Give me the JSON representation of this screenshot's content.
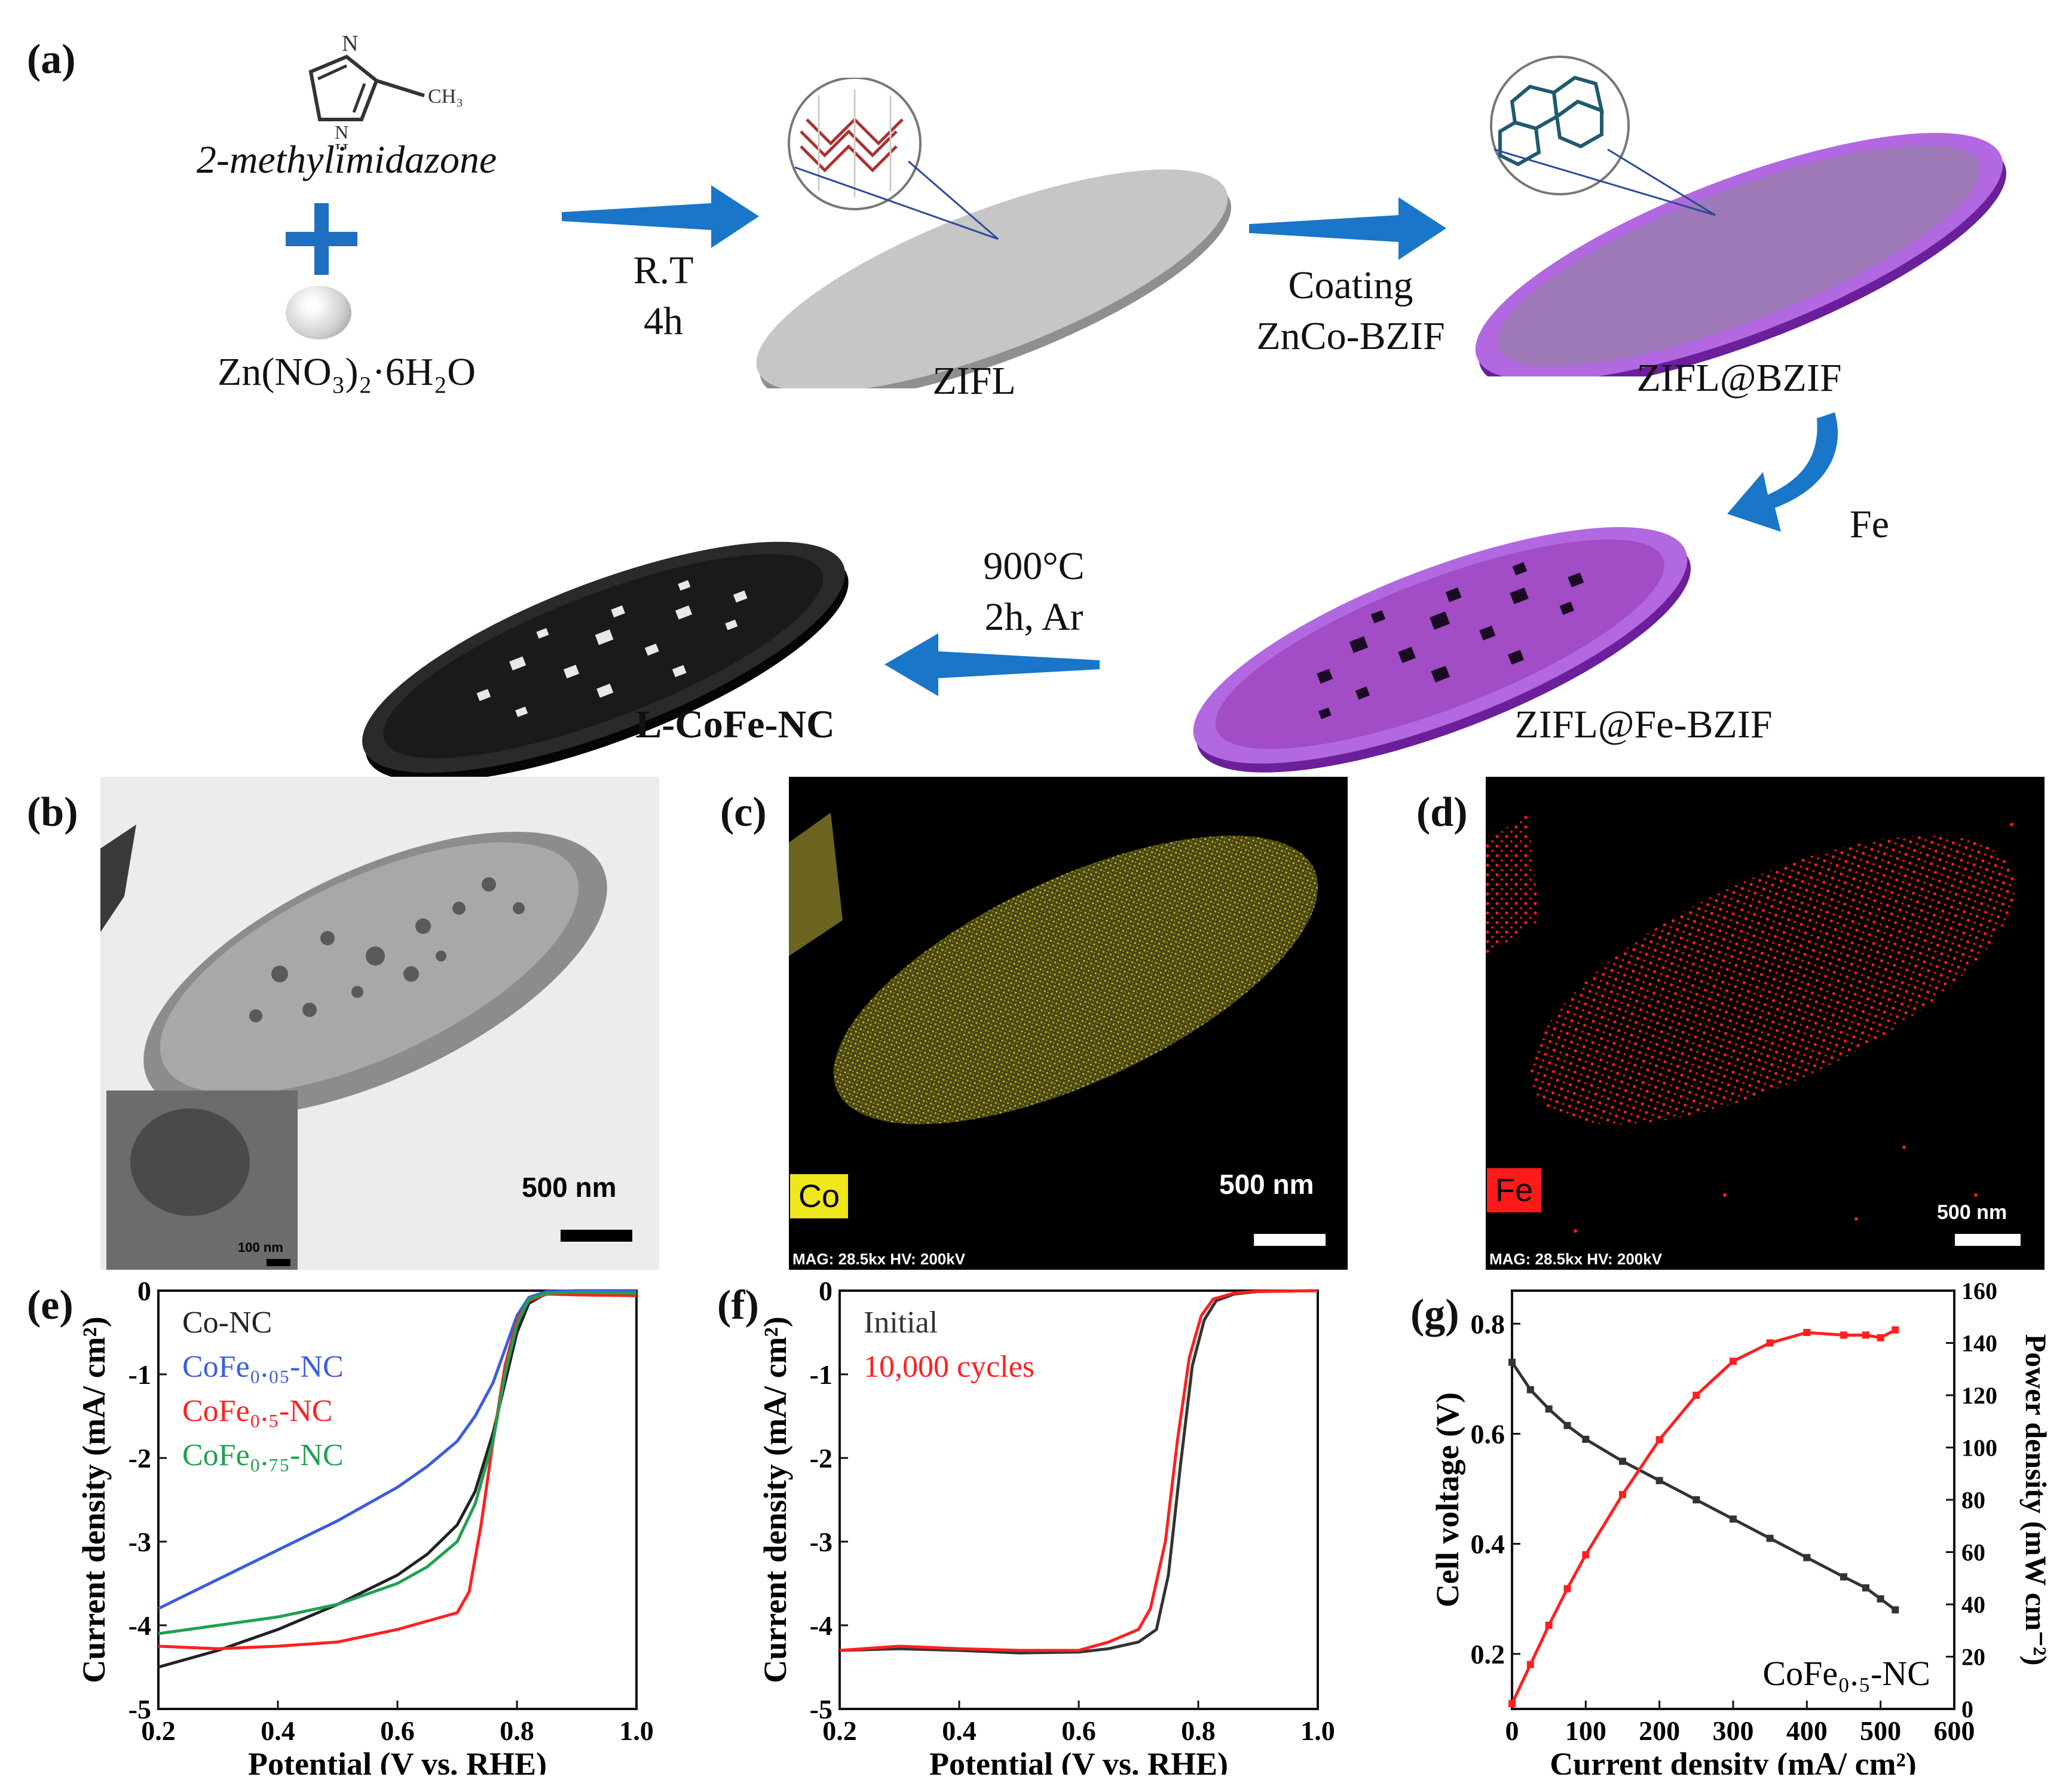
{
  "panel_labels": {
    "a": "(a)",
    "b": "(b)",
    "c": "(c)",
    "d": "(d)",
    "e": "(e)",
    "f": "(f)",
    "g": "(g)"
  },
  "scheme": {
    "reagent1": "2-methylimidazone",
    "methyl": "CH₃",
    "nh": "H",
    "n": "N",
    "reagent2": "Zn(NO₃)₂·6H₂O",
    "step1_line1": "R.T",
    "step1_line2": "4h",
    "product1": "ZIFL",
    "step2_line1": "Coating",
    "step2_line2": "ZnCo-BZIF",
    "product2": "ZIFL@BZIF",
    "step3": "Fe",
    "product3": "ZIFL@Fe-BZIF",
    "step4_line1": "900°C",
    "step4_line2": "2h, Ar",
    "product4": "L-CoFe-NC",
    "colors": {
      "arrow": "#1976c8",
      "purple": "#9a3fd0",
      "gray_disc": "#b8b8b8",
      "black_disc": "#111111"
    }
  },
  "micrographs": {
    "b_scale": "500 nm",
    "b_inset_scale": "100 nm",
    "c_scale": "500 nm",
    "c_element": "Co",
    "c_mag": "MAG: 28.5kx  HV: 200kV",
    "d_scale": "500 nm",
    "d_element": "Fe",
    "d_mag": "MAG: 28.5kx  HV: 200kV",
    "colors": {
      "co": "#e6dc1e",
      "fe": "#ff1a1a"
    }
  },
  "chart_data": [
    {
      "panel": "e",
      "type": "line",
      "xlabel": "Potential (V vs. RHE)",
      "ylabel": "Current density (mA/ cm²)",
      "xlim": [
        0.2,
        1.0
      ],
      "ylim": [
        -5,
        0
      ],
      "xticks": [
        "0.2",
        "0.4",
        "0.6",
        "0.8",
        "1.0"
      ],
      "yticks": [
        "0",
        "-1",
        "-2",
        "-3",
        "-4",
        "-5"
      ],
      "legend_placement": "top-left",
      "series": [
        {
          "name": "Co-NC",
          "color": "#222222",
          "x": [
            0.2,
            0.3,
            0.4,
            0.5,
            0.6,
            0.65,
            0.7,
            0.73,
            0.76,
            0.78,
            0.8,
            0.82,
            0.85,
            0.9,
            1.0
          ],
          "y": [
            -4.5,
            -4.3,
            -4.05,
            -3.75,
            -3.4,
            -3.15,
            -2.8,
            -2.4,
            -1.7,
            -1.1,
            -0.5,
            -0.15,
            -0.03,
            0.0,
            0.0
          ]
        },
        {
          "name": "CoFe₀.₀₅-NC",
          "color": "#3a5de0",
          "x": [
            0.2,
            0.3,
            0.4,
            0.5,
            0.6,
            0.65,
            0.7,
            0.73,
            0.76,
            0.78,
            0.8,
            0.82,
            0.85,
            0.9,
            1.0
          ],
          "y": [
            -3.8,
            -3.45,
            -3.1,
            -2.75,
            -2.35,
            -2.1,
            -1.8,
            -1.5,
            -1.1,
            -0.7,
            -0.3,
            -0.08,
            -0.01,
            0.0,
            0.0
          ]
        },
        {
          "name": "CoFe₀.₅-NC",
          "color": "#ff2020",
          "x": [
            0.2,
            0.3,
            0.4,
            0.5,
            0.6,
            0.65,
            0.7,
            0.72,
            0.74,
            0.76,
            0.78,
            0.8,
            0.82,
            0.85,
            0.9,
            1.0
          ],
          "y": [
            -4.25,
            -4.28,
            -4.25,
            -4.2,
            -4.05,
            -3.95,
            -3.85,
            -3.6,
            -2.8,
            -1.8,
            -0.9,
            -0.35,
            -0.12,
            -0.04,
            -0.05,
            -0.06
          ]
        },
        {
          "name": "CoFe₀.₇₅-NC",
          "color": "#20a050",
          "x": [
            0.2,
            0.3,
            0.4,
            0.5,
            0.6,
            0.65,
            0.7,
            0.73,
            0.76,
            0.78,
            0.8,
            0.82,
            0.85,
            0.9,
            1.0
          ],
          "y": [
            -4.1,
            -4.0,
            -3.9,
            -3.75,
            -3.5,
            -3.3,
            -3.0,
            -2.55,
            -1.8,
            -1.0,
            -0.4,
            -0.1,
            -0.03,
            -0.02,
            -0.03
          ]
        }
      ]
    },
    {
      "panel": "f",
      "type": "line",
      "xlabel": "Potential (V vs. RHE)",
      "ylabel": "Current density (mA/ cm²)",
      "xlim": [
        0.2,
        1.0
      ],
      "ylim": [
        -5,
        0
      ],
      "xticks": [
        "0.2",
        "0.4",
        "0.6",
        "0.8",
        "1.0"
      ],
      "yticks": [
        "0",
        "-1",
        "-2",
        "-3",
        "-4",
        "-5"
      ],
      "legend_placement": "top-left",
      "series": [
        {
          "name": "Initial",
          "color": "#333333",
          "x": [
            0.2,
            0.3,
            0.4,
            0.5,
            0.6,
            0.65,
            0.7,
            0.73,
            0.75,
            0.77,
            0.79,
            0.81,
            0.83,
            0.86,
            0.9,
            1.0
          ],
          "y": [
            -4.3,
            -4.28,
            -4.3,
            -4.33,
            -4.32,
            -4.28,
            -4.2,
            -4.05,
            -3.4,
            -2.1,
            -0.9,
            -0.35,
            -0.12,
            -0.04,
            -0.01,
            0.0
          ]
        },
        {
          "name": "10,000 cycles",
          "color": "#ff2020",
          "x": [
            0.2,
            0.3,
            0.4,
            0.5,
            0.6,
            0.65,
            0.7,
            0.72,
            0.745,
            0.765,
            0.785,
            0.805,
            0.825,
            0.86,
            0.9,
            1.0
          ],
          "y": [
            -4.3,
            -4.25,
            -4.28,
            -4.3,
            -4.3,
            -4.2,
            -4.05,
            -3.8,
            -3.0,
            -1.8,
            -0.8,
            -0.3,
            -0.1,
            -0.03,
            -0.01,
            0.0
          ]
        }
      ]
    },
    {
      "panel": "g",
      "type": "line",
      "xlabel": "Current density (mA/ cm²)",
      "ylabel": "Cell voltage (V)",
      "y2label": "Power density (mW cm⁻²)",
      "annotation": "CoFe₀.₅-NC",
      "xlim": [
        0,
        600
      ],
      "ylim": [
        0.1,
        0.86
      ],
      "y2lim": [
        0,
        160
      ],
      "xticks": [
        "0",
        "100",
        "200",
        "300",
        "400",
        "500",
        "600"
      ],
      "yticks": [
        "0.2",
        "0.4",
        "0.6",
        "0.8"
      ],
      "y2ticks": [
        "0",
        "20",
        "40",
        "60",
        "80",
        "100",
        "120",
        "140",
        "160"
      ],
      "series": [
        {
          "name": "Cell voltage",
          "axis": "left",
          "color": "#333333",
          "x": [
            0,
            25,
            50,
            75,
            100,
            150,
            200,
            250,
            300,
            350,
            400,
            450,
            480,
            500,
            520
          ],
          "y": [
            0.73,
            0.68,
            0.645,
            0.615,
            0.59,
            0.55,
            0.515,
            0.48,
            0.445,
            0.41,
            0.375,
            0.34,
            0.32,
            0.3,
            0.28
          ]
        },
        {
          "name": "Power density",
          "axis": "right",
          "color": "#ff2020",
          "x": [
            0,
            25,
            50,
            75,
            100,
            150,
            200,
            250,
            300,
            350,
            400,
            450,
            480,
            500,
            520
          ],
          "y": [
            2,
            17,
            32,
            46,
            59,
            82,
            103,
            120,
            133,
            140,
            144,
            143,
            143,
            142,
            145
          ]
        }
      ]
    }
  ]
}
